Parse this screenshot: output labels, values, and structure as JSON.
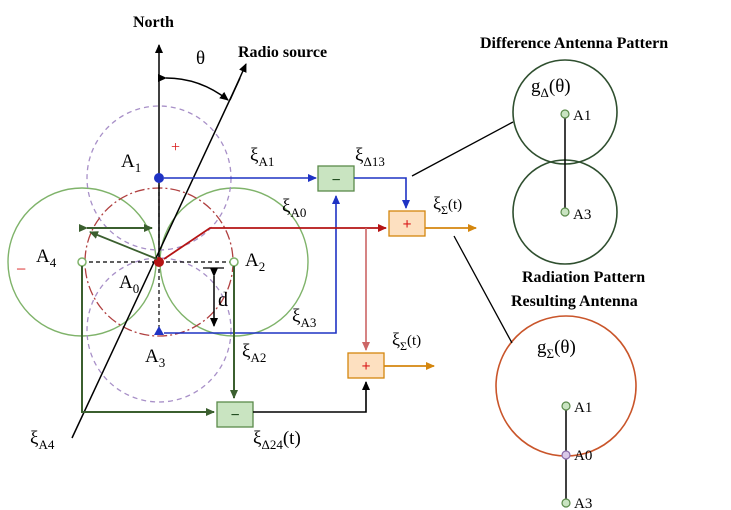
{
  "labels": {
    "north": "North",
    "theta": "θ",
    "radio_source": "Radio source",
    "diff_title": "Difference Antenna Pattern",
    "rad_title_line1": "Radiation Pattern",
    "rad_title_line2": "Resulting Antenna",
    "d": "d"
  },
  "antennas": {
    "a1": {
      "name": "A",
      "sub": "1"
    },
    "a2": {
      "name": "A",
      "sub": "2"
    },
    "a3": {
      "name": "A",
      "sub": "3"
    },
    "a4": {
      "name": "A",
      "sub": "4"
    },
    "a0": {
      "name": "A",
      "sub": "0"
    }
  },
  "signals": {
    "xi": "ξ",
    "a1": "A1",
    "a0": "A0",
    "a3": "A3",
    "a2": "A2",
    "a4": "A4",
    "d13": "Δ13",
    "d24": "Δ24",
    "sigma": "Σ",
    "t": "(t)"
  },
  "operators": {
    "minus": "−",
    "plus": "+"
  },
  "patterns": {
    "g": "g",
    "delta": "Δ",
    "sigma": "Σ",
    "arg": "(θ)",
    "a1": "A1",
    "a3": "A3",
    "a0": "A0"
  },
  "colors": {
    "green_signal": "#3b5f2f",
    "blue_signal": "#1f33c4",
    "red_signal": "#b51414",
    "orange_out": "#d4860e",
    "pink_signal": "#cc6666",
    "circle_green": "#7fb36a",
    "circle_purple": "#a890c8",
    "circle_red": "#b04040",
    "pattern_dark": "#2f4f2f",
    "pattern_orange": "#c9552a"
  }
}
